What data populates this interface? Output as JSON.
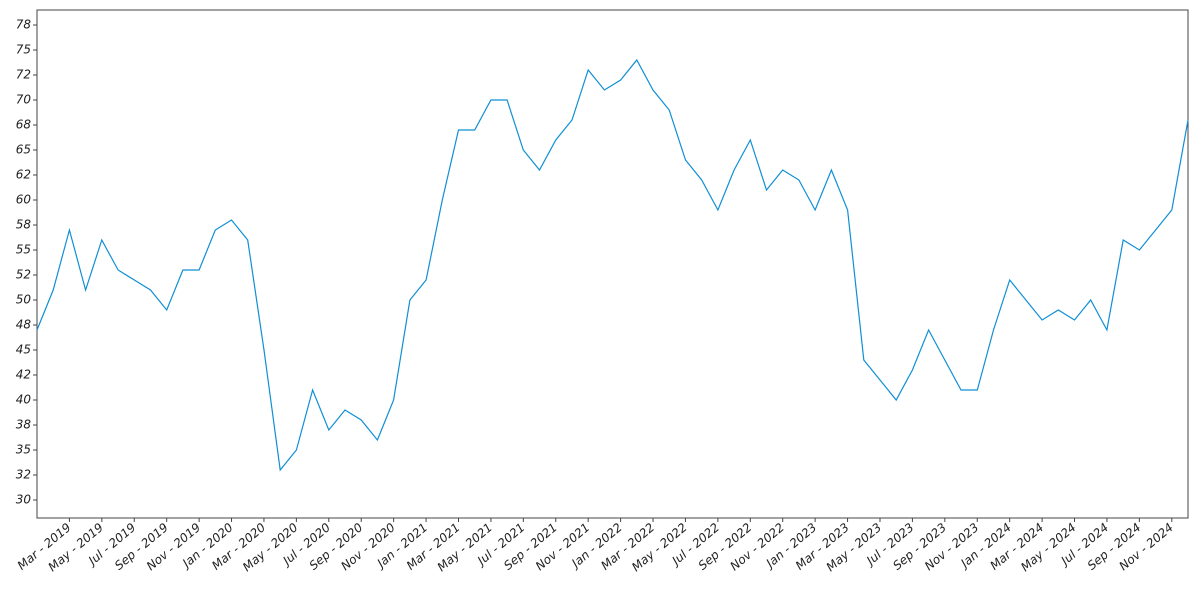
{
  "chart_data": {
    "type": "line",
    "x": [
      "2019-01",
      "2019-02",
      "2019-03",
      "2019-04",
      "2019-05",
      "2019-06",
      "2019-07",
      "2019-08",
      "2019-09",
      "2019-10",
      "2019-11",
      "2019-12",
      "2020-01",
      "2020-02",
      "2020-03",
      "2020-04",
      "2020-05",
      "2020-06",
      "2020-07",
      "2020-08",
      "2020-09",
      "2020-10",
      "2020-11",
      "2020-12",
      "2021-01",
      "2021-02",
      "2021-03",
      "2021-04",
      "2021-05",
      "2021-06",
      "2021-07",
      "2021-08",
      "2021-09",
      "2021-10",
      "2021-11",
      "2021-12",
      "2022-01",
      "2022-02",
      "2022-03",
      "2022-04",
      "2022-05",
      "2022-06",
      "2022-07",
      "2022-08",
      "2022-09",
      "2022-10",
      "2022-11",
      "2022-12",
      "2023-01",
      "2023-02",
      "2023-03",
      "2023-04",
      "2023-05",
      "2023-06",
      "2023-07",
      "2023-08",
      "2023-09",
      "2023-10",
      "2023-11",
      "2023-12",
      "2024-01",
      "2024-02",
      "2024-03",
      "2024-04",
      "2024-05",
      "2024-06",
      "2024-07",
      "2024-08",
      "2024-09",
      "2024-10",
      "2024-11",
      "2024-12"
    ],
    "series": [
      {
        "color": "#0f8fd4",
        "values": [
          47,
          51,
          57,
          51,
          56,
          53,
          52,
          51,
          49,
          53,
          53,
          57,
          58,
          56,
          45,
          33,
          35,
          41,
          37,
          39,
          38,
          36,
          40,
          50,
          52,
          60,
          67,
          67,
          70,
          70,
          65,
          63,
          66,
          68,
          73,
          71,
          72,
          74,
          71,
          69,
          64,
          62,
          59,
          63,
          66,
          61,
          63,
          62,
          59,
          63,
          59,
          44,
          42,
          40,
          43,
          47,
          44,
          41,
          41,
          47,
          52,
          50,
          48,
          49,
          48,
          50,
          47,
          56,
          55,
          57,
          59,
          68
        ]
      }
    ],
    "xlim": [
      "2019-01",
      "2024-12"
    ],
    "xticks": [
      {
        "value": "2019-03",
        "label": "Mar - 2019"
      },
      {
        "value": "2019-05",
        "label": "May - 2019"
      },
      {
        "value": "2019-07",
        "label": "Jul - 2019"
      },
      {
        "value": "2019-09",
        "label": "Sep - 2019"
      },
      {
        "value": "2019-11",
        "label": "Nov - 2019"
      },
      {
        "value": "2020-01",
        "label": "Jan - 2020"
      },
      {
        "value": "2020-03",
        "label": "Mar - 2020"
      },
      {
        "value": "2020-05",
        "label": "May - 2020"
      },
      {
        "value": "2020-07",
        "label": "Jul - 2020"
      },
      {
        "value": "2020-09",
        "label": "Sep - 2020"
      },
      {
        "value": "2020-11",
        "label": "Nov - 2020"
      },
      {
        "value": "2021-01",
        "label": "Jan - 2021"
      },
      {
        "value": "2021-03",
        "label": "Mar - 2021"
      },
      {
        "value": "2021-05",
        "label": "May - 2021"
      },
      {
        "value": "2021-07",
        "label": "Jul - 2021"
      },
      {
        "value": "2021-09",
        "label": "Sep - 2021"
      },
      {
        "value": "2021-11",
        "label": "Nov - 2021"
      },
      {
        "value": "2022-01",
        "label": "Jan - 2022"
      },
      {
        "value": "2022-03",
        "label": "Mar - 2022"
      },
      {
        "value": "2022-05",
        "label": "May - 2022"
      },
      {
        "value": "2022-07",
        "label": "Jul - 2022"
      },
      {
        "value": "2022-09",
        "label": "Sep - 2022"
      },
      {
        "value": "2022-11",
        "label": "Nov - 2022"
      },
      {
        "value": "2023-01",
        "label": "Jan - 2023"
      },
      {
        "value": "2023-03",
        "label": "Mar - 2023"
      },
      {
        "value": "2023-05",
        "label": "May - 2023"
      },
      {
        "value": "2023-07",
        "label": "Jul - 2023"
      },
      {
        "value": "2023-09",
        "label": "Sep - 2023"
      },
      {
        "value": "2023-11",
        "label": "Nov - 2023"
      },
      {
        "value": "2024-01",
        "label": "Jan - 2024"
      },
      {
        "value": "2024-03",
        "label": "Mar - 2024"
      },
      {
        "value": "2024-05",
        "label": "May - 2024"
      },
      {
        "value": "2024-07",
        "label": "Jul - 2024"
      },
      {
        "value": "2024-09",
        "label": "Sep - 2024"
      },
      {
        "value": "2024-11",
        "label": "Nov - 2024"
      }
    ],
    "ylim": [
      28.2,
      79
    ],
    "yticks": [
      30,
      {
        "value": 32.5,
        "label": "32"
      },
      35,
      {
        "value": 37.5,
        "label": "38"
      },
      40,
      {
        "value": 42.5,
        "label": "42"
      },
      45,
      {
        "value": 47.5,
        "label": "48"
      },
      50,
      {
        "value": 52.5,
        "label": "52"
      },
      55,
      {
        "value": 57.5,
        "label": "58"
      },
      60,
      {
        "value": 62.5,
        "label": "62"
      },
      65,
      {
        "value": 67.5,
        "label": "68"
      },
      70,
      {
        "value": 72.5,
        "label": "72"
      },
      75,
      {
        "value": 77.5,
        "label": "78"
      }
    ],
    "grid": false
  }
}
